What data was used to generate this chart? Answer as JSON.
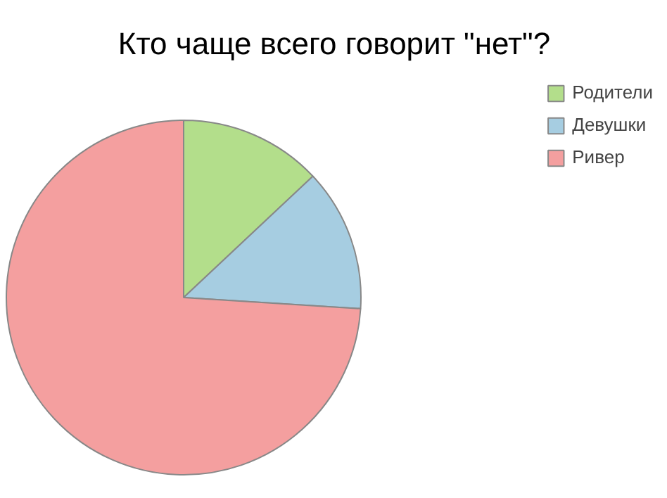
{
  "chart_data": {
    "type": "pie",
    "title": "Кто чаще всего говорит \"нет\"?",
    "categories": [
      "Родители",
      "Девушки",
      "Ривер"
    ],
    "values": [
      13,
      13,
      74
    ],
    "colors": [
      "#b3de8b",
      "#a6cde1",
      "#f49f9f"
    ],
    "legend": "top right"
  }
}
